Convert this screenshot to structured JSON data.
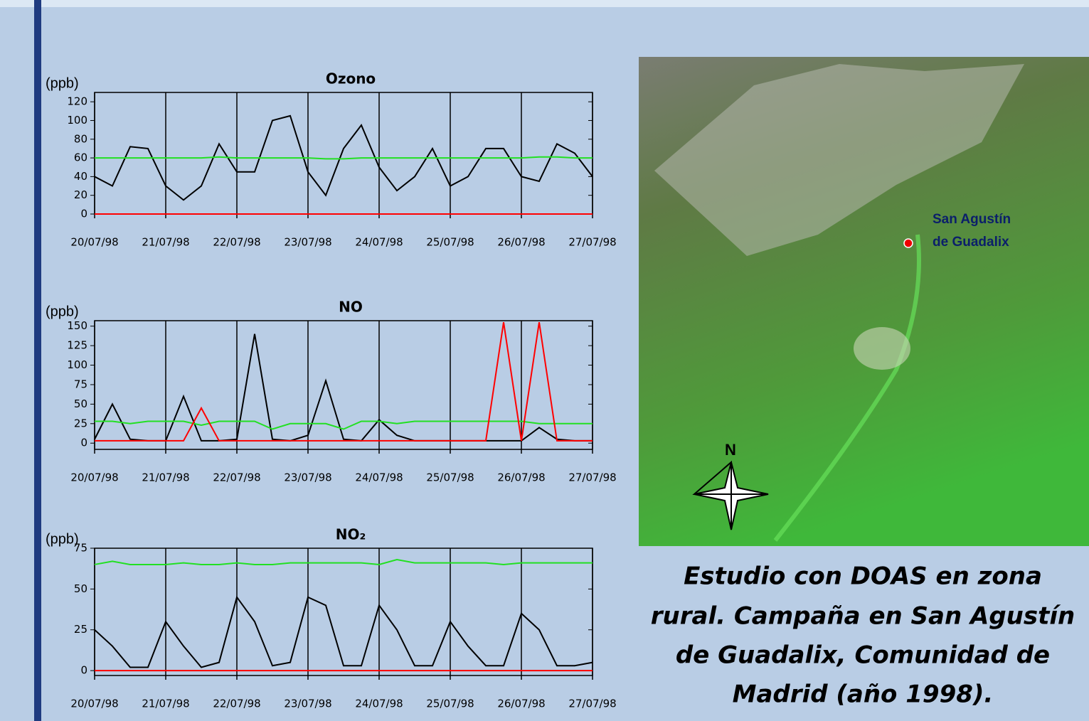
{
  "chart_data": [
    {
      "type": "line",
      "title": "Ozono",
      "ylabel": "(ppb)",
      "x": [
        0,
        0.25,
        0.5,
        0.75,
        1,
        1.25,
        1.5,
        1.75,
        2,
        2.25,
        2.5,
        2.75,
        3,
        3.25,
        3.5,
        3.75,
        4,
        4.25,
        4.5,
        4.75,
        5,
        5.25,
        5.5,
        5.75,
        6,
        6.25,
        6.5,
        6.75,
        7
      ],
      "xlim": [
        0,
        7
      ],
      "xticks": [
        {
          "value": 0,
          "label": "20/07/98"
        },
        {
          "value": 1,
          "label": "21/07/98"
        },
        {
          "value": 2,
          "label": "22/07/98"
        },
        {
          "value": 3,
          "label": "23/07/98"
        },
        {
          "value": 4,
          "label": "24/07/98"
        },
        {
          "value": 5,
          "label": "25/07/98"
        },
        {
          "value": 6,
          "label": "26/07/98"
        },
        {
          "value": 7,
          "label": "27/07/98"
        }
      ],
      "ylim": [
        0,
        130
      ],
      "yticks": [
        0,
        20,
        40,
        60,
        80,
        100,
        120
      ],
      "series": [
        {
          "color": "#000000",
          "values": [
            40,
            30,
            72,
            70,
            30,
            15,
            30,
            75,
            45,
            45,
            100,
            105,
            45,
            20,
            70,
            95,
            50,
            25,
            40,
            70,
            30,
            40,
            70,
            70,
            40,
            35,
            75,
            65,
            40
          ]
        },
        {
          "color": "#22e022",
          "values": [
            60,
            60,
            60,
            60,
            60,
            60,
            60,
            61,
            60,
            60,
            60,
            60,
            60,
            59,
            59,
            60,
            60,
            60,
            60,
            60,
            60,
            60,
            60,
            60,
            60,
            61,
            61,
            60,
            60
          ]
        },
        {
          "color": "#ff0000",
          "values": [
            0,
            0,
            0,
            0,
            0,
            0,
            0,
            0,
            0,
            0,
            0,
            0,
            0,
            0,
            0,
            0,
            0,
            0,
            0,
            0,
            0,
            0,
            0,
            0,
            0,
            0,
            0,
            0,
            0
          ]
        }
      ]
    },
    {
      "type": "line",
      "title": "NO",
      "ylabel": "(ppb)",
      "x": [
        0,
        0.25,
        0.5,
        0.75,
        1,
        1.25,
        1.5,
        1.75,
        2,
        2.25,
        2.5,
        2.75,
        3,
        3.25,
        3.5,
        3.75,
        4,
        4.25,
        4.5,
        4.75,
        5,
        5.25,
        5.5,
        5.75,
        6,
        6.25,
        6.5,
        6.75,
        7
      ],
      "xlim": [
        0,
        7
      ],
      "xticks": [
        {
          "value": 0,
          "label": "20/07/98"
        },
        {
          "value": 1,
          "label": "21/07/98"
        },
        {
          "value": 2,
          "label": "22/07/98"
        },
        {
          "value": 3,
          "label": "23/07/98"
        },
        {
          "value": 4,
          "label": "24/07/98"
        },
        {
          "value": 5,
          "label": "25/07/98"
        },
        {
          "value": 6,
          "label": "26/07/98"
        },
        {
          "value": 7,
          "label": "27/07/98"
        }
      ],
      "ylim": [
        -8,
        157
      ],
      "yticks": [
        0,
        25,
        50,
        75,
        100,
        125,
        150
      ],
      "series": [
        {
          "color": "#000000",
          "values": [
            5,
            50,
            5,
            3,
            3,
            60,
            3,
            3,
            5,
            140,
            5,
            3,
            10,
            80,
            5,
            3,
            30,
            10,
            3,
            3,
            3,
            3,
            3,
            3,
            3,
            20,
            5,
            3,
            3
          ]
        },
        {
          "color": "#22e022",
          "values": [
            28,
            28,
            25,
            28,
            28,
            28,
            23,
            28,
            28,
            28,
            18,
            25,
            25,
            25,
            18,
            28,
            28,
            25,
            28,
            28,
            28,
            28,
            28,
            28,
            28,
            25,
            25,
            25,
            25
          ]
        },
        {
          "color": "#ff0000",
          "values": [
            3,
            3,
            3,
            3,
            3,
            3,
            45,
            3,
            3,
            3,
            3,
            3,
            3,
            3,
            3,
            3,
            3,
            3,
            3,
            3,
            3,
            3,
            3,
            155,
            3,
            155,
            3,
            3,
            3
          ]
        }
      ]
    },
    {
      "type": "line",
      "title": "NO₂",
      "ylabel": "(ppb)",
      "x": [
        0,
        0.25,
        0.5,
        0.75,
        1,
        1.25,
        1.5,
        1.75,
        2,
        2.25,
        2.5,
        2.75,
        3,
        3.25,
        3.5,
        3.75,
        4,
        4.25,
        4.5,
        4.75,
        5,
        5.25,
        5.5,
        5.75,
        6,
        6.25,
        6.5,
        6.75,
        7
      ],
      "xlim": [
        0,
        7
      ],
      "xticks": [
        {
          "value": 0,
          "label": "20/07/98"
        },
        {
          "value": 1,
          "label": "21/07/98"
        },
        {
          "value": 2,
          "label": "22/07/98"
        },
        {
          "value": 3,
          "label": "23/07/98"
        },
        {
          "value": 4,
          "label": "24/07/98"
        },
        {
          "value": 5,
          "label": "25/07/98"
        },
        {
          "value": 6,
          "label": "26/07/98"
        },
        {
          "value": 7,
          "label": "27/07/98"
        }
      ],
      "ylim": [
        -3,
        75
      ],
      "yticks": [
        0,
        25,
        50,
        75
      ],
      "series": [
        {
          "color": "#000000",
          "values": [
            25,
            15,
            2,
            2,
            30,
            15,
            2,
            5,
            45,
            30,
            3,
            5,
            45,
            40,
            3,
            3,
            40,
            25,
            3,
            3,
            30,
            15,
            3,
            3,
            35,
            25,
            3,
            3,
            5
          ]
        },
        {
          "color": "#22e022",
          "values": [
            65,
            67,
            65,
            65,
            65,
            66,
            65,
            65,
            66,
            65,
            65,
            66,
            66,
            66,
            66,
            66,
            65,
            68,
            66,
            66,
            66,
            66,
            66,
            65,
            66,
            66,
            66,
            66,
            66
          ]
        },
        {
          "color": "#ff0000",
          "values": [
            0,
            0,
            0,
            0,
            0,
            0,
            0,
            0,
            0,
            0,
            0,
            0,
            0,
            0,
            0,
            0,
            0,
            0,
            0,
            0,
            0,
            0,
            0,
            0,
            0,
            0,
            0,
            0,
            0
          ]
        }
      ]
    }
  ],
  "map": {
    "place": [
      "San Agustín",
      "de Guadalix"
    ],
    "north": "N"
  },
  "caption": [
    "Estudio con DOAS en zona",
    "rural. Campaña en San Agustín",
    "de Guadalix, Comunidad de",
    "Madrid (año 1998)."
  ]
}
